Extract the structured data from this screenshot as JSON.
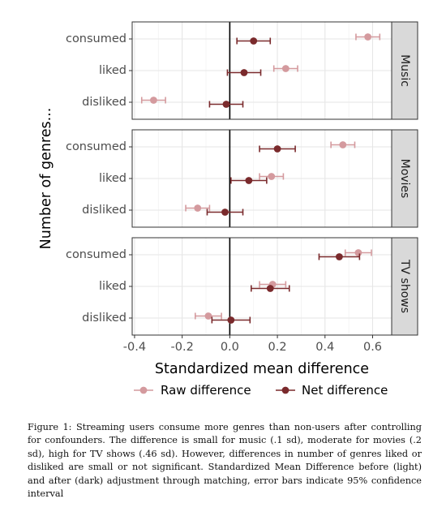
{
  "chart_data": {
    "type": "scatter",
    "subtype": "forest-plot-with-error-bars",
    "xlabel": "Standardized mean difference",
    "ylabel": "Number of genres...",
    "xlim": [
      -0.41,
      0.68
    ],
    "xticks": [
      -0.4,
      -0.2,
      0.0,
      0.2,
      0.4,
      0.6
    ],
    "xtick_labels": [
      "-0.4",
      "-0.2",
      "0.0",
      "0.2",
      "0.4",
      "0.6"
    ],
    "categories": [
      "consumed",
      "liked",
      "disliked"
    ],
    "facets": [
      "Music",
      "Movies",
      "TV shows"
    ],
    "reference_line_x": 0,
    "grid": true,
    "legend_position": "bottom",
    "series": [
      {
        "name": "Raw difference",
        "color": "#d49a9e",
        "points": [
          {
            "facet": "Music",
            "category": "consumed",
            "value": 0.58,
            "low": 0.53,
            "high": 0.63
          },
          {
            "facet": "Music",
            "category": "liked",
            "value": 0.235,
            "low": 0.185,
            "high": 0.285
          },
          {
            "facet": "Music",
            "category": "disliked",
            "value": -0.32,
            "low": -0.37,
            "high": -0.27
          },
          {
            "facet": "Movies",
            "category": "consumed",
            "value": 0.475,
            "low": 0.425,
            "high": 0.525
          },
          {
            "facet": "Movies",
            "category": "liked",
            "value": 0.175,
            "low": 0.125,
            "high": 0.225
          },
          {
            "facet": "Movies",
            "category": "disliked",
            "value": -0.135,
            "low": -0.185,
            "high": -0.085
          },
          {
            "facet": "TV shows",
            "category": "consumed",
            "value": 0.54,
            "low": 0.485,
            "high": 0.595
          },
          {
            "facet": "TV shows",
            "category": "liked",
            "value": 0.18,
            "low": 0.125,
            "high": 0.235
          },
          {
            "facet": "TV shows",
            "category": "disliked",
            "value": -0.09,
            "low": -0.145,
            "high": -0.035
          }
        ]
      },
      {
        "name": "Net difference",
        "color": "#7a2a2c",
        "points": [
          {
            "facet": "Music",
            "category": "consumed",
            "value": 0.1,
            "low": 0.03,
            "high": 0.17
          },
          {
            "facet": "Music",
            "category": "liked",
            "value": 0.06,
            "low": -0.01,
            "high": 0.13
          },
          {
            "facet": "Music",
            "category": "disliked",
            "value": -0.015,
            "low": -0.085,
            "high": 0.055
          },
          {
            "facet": "Movies",
            "category": "consumed",
            "value": 0.2,
            "low": 0.125,
            "high": 0.275
          },
          {
            "facet": "Movies",
            "category": "liked",
            "value": 0.08,
            "low": 0.005,
            "high": 0.155
          },
          {
            "facet": "Movies",
            "category": "disliked",
            "value": -0.02,
            "low": -0.095,
            "high": 0.055
          },
          {
            "facet": "TV shows",
            "category": "consumed",
            "value": 0.46,
            "low": 0.375,
            "high": 0.545
          },
          {
            "facet": "TV shows",
            "category": "liked",
            "value": 0.17,
            "low": 0.09,
            "high": 0.25
          },
          {
            "facet": "TV shows",
            "category": "disliked",
            "value": 0.005,
            "low": -0.075,
            "high": 0.085
          }
        ]
      }
    ]
  },
  "caption": "Figure 1: Streaming users consume more genres than non-users after controlling for confounders. The difference is small for music (.1 sd), moderate for movies (.2 sd), high for TV shows (.46 sd). However, differences in number of genres liked or disliked are small or not significant. Standardized Mean Difference before (light) and after (dark) adjustment through matching, error bars indicate 95% confidence interval"
}
